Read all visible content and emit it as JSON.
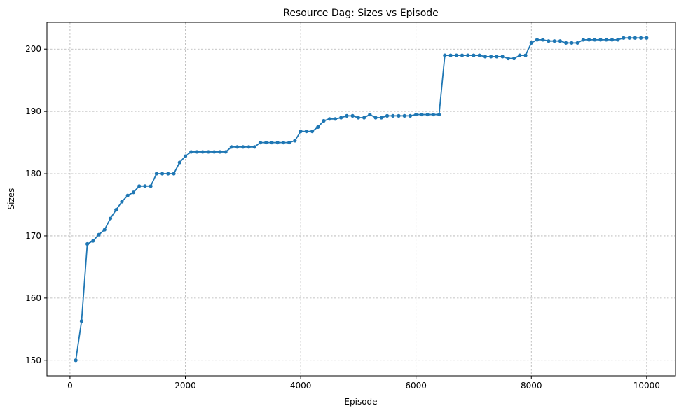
{
  "chart_data": {
    "type": "line",
    "title": "Resource Dag: Sizes vs Episode",
    "xlabel": "Episode",
    "ylabel": "Sizes",
    "xlim": [
      -400,
      10500
    ],
    "ylim": [
      147.5,
      204.3
    ],
    "xticks": [
      0,
      2000,
      4000,
      6000,
      8000,
      10000
    ],
    "yticks": [
      150,
      160,
      170,
      180,
      190,
      200
    ],
    "grid": true,
    "color": "#1f77b4",
    "marker": "circle",
    "series": [
      {
        "x": [
          100,
          200,
          300,
          400,
          500,
          600,
          700,
          800,
          900,
          1000,
          1100,
          1200,
          1300,
          1400,
          1500,
          1600,
          1700,
          1800,
          1900,
          2000,
          2100,
          2200,
          2300,
          2400,
          2500,
          2600,
          2700,
          2800,
          2900,
          3000,
          3100,
          3200,
          3300,
          3400,
          3500,
          3600,
          3700,
          3800,
          3900,
          4000,
          4100,
          4200,
          4300,
          4400,
          4500,
          4600,
          4700,
          4800,
          4900,
          5000,
          5100,
          5200,
          5300,
          5400,
          5500,
          5600,
          5700,
          5800,
          5900,
          6000,
          6100,
          6200,
          6300,
          6400,
          6500,
          6600,
          6700,
          6800,
          6900,
          7000,
          7100,
          7200,
          7300,
          7400,
          7500,
          7600,
          7700,
          7800,
          7900,
          8000,
          8100,
          8200,
          8300,
          8400,
          8500,
          8600,
          8700,
          8800,
          8900,
          9000,
          9100,
          9200,
          9300,
          9400,
          9500,
          9600,
          9700,
          9800,
          9900,
          10000
        ],
        "values": [
          150.0,
          156.3,
          168.7,
          169.2,
          170.2,
          171.0,
          172.8,
          174.2,
          175.5,
          176.5,
          177.0,
          178.0,
          178.0,
          178.0,
          180.0,
          180.0,
          180.0,
          180.0,
          181.8,
          182.8,
          183.5,
          183.5,
          183.5,
          183.5,
          183.5,
          183.5,
          183.5,
          184.3,
          184.3,
          184.3,
          184.3,
          184.3,
          185.0,
          185.0,
          185.0,
          185.0,
          185.0,
          185.0,
          185.3,
          186.8,
          186.8,
          186.8,
          187.5,
          188.5,
          188.8,
          188.8,
          189.0,
          189.3,
          189.3,
          189.0,
          189.0,
          189.5,
          189.0,
          189.0,
          189.3,
          189.3,
          189.3,
          189.3,
          189.3,
          189.5,
          189.5,
          189.5,
          189.5,
          189.5,
          199.0,
          199.0,
          199.0,
          199.0,
          199.0,
          199.0,
          199.0,
          198.8,
          198.8,
          198.8,
          198.8,
          198.5,
          198.5,
          199.0,
          199.0,
          201.0,
          201.5,
          201.5,
          201.3,
          201.3,
          201.3,
          201.0,
          201.0,
          201.0,
          201.5,
          201.5,
          201.5,
          201.5,
          201.5,
          201.5,
          201.5,
          201.8,
          201.8,
          201.8,
          201.8,
          201.8
        ]
      }
    ]
  }
}
